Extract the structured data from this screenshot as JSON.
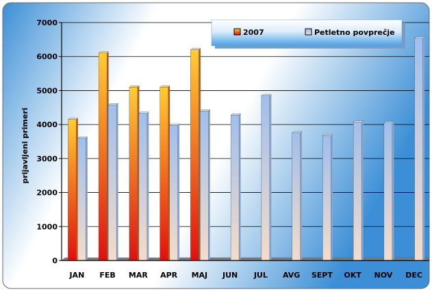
{
  "chart_data": {
    "type": "bar",
    "title": "",
    "xlabel": "",
    "ylabel": "prijavljeni primeri",
    "categories": [
      "JAN",
      "FEB",
      "MAR",
      "APR",
      "MAJ",
      "JUN",
      "JUL",
      "AVG",
      "SEPT",
      "OKT",
      "NOV",
      "DEC"
    ],
    "series": [
      {
        "name": "2007",
        "values": [
          4150,
          6100,
          5100,
          5100,
          6200,
          null,
          null,
          null,
          null,
          null,
          null,
          null
        ]
      },
      {
        "name": "Petletno povprečje",
        "values": [
          3600,
          4580,
          4330,
          3980,
          4400,
          4280,
          4850,
          3760,
          3670,
          4070,
          4050,
          6540
        ]
      }
    ],
    "ylim": [
      0,
      7000
    ],
    "yticks": [
      0,
      1000,
      2000,
      3000,
      4000,
      5000,
      6000,
      7000
    ],
    "grid": true,
    "legend_position": "top-right",
    "colors": {
      "series_2007_top": "#ffcc33",
      "series_2007_bottom": "#e01010",
      "series_avg_top": "#9fbfec",
      "series_avg_bottom": "#f4dccb",
      "background_light": "#ffffff",
      "background_dark": "#3c8fd6",
      "legend_top": "#ffffff",
      "legend_bottom": "#48a0e6"
    }
  }
}
